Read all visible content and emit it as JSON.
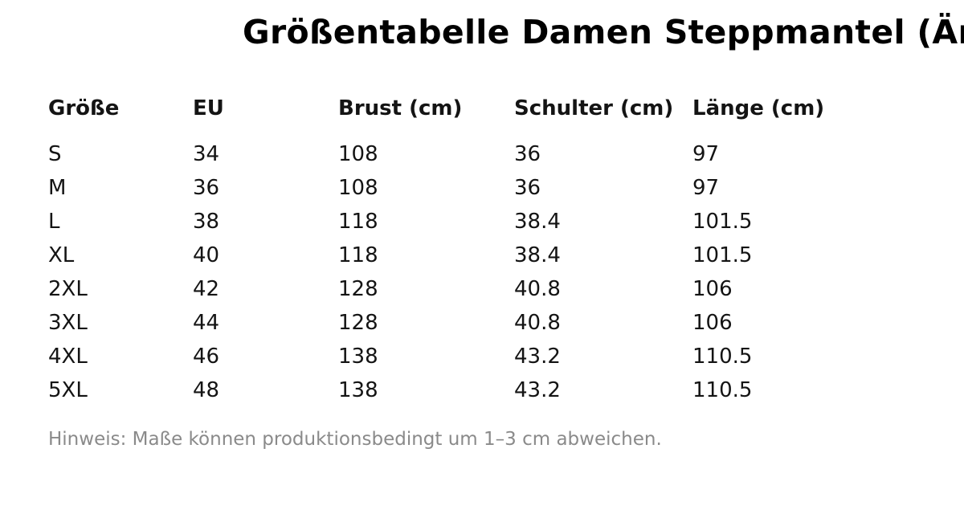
{
  "chart_data": {
    "type": "table",
    "title": "Größentabelle Damen Steppmantel (Ärm",
    "columns": [
      "Größe",
      "EU",
      "Brust (cm)",
      "Schulter (cm)",
      "Länge (cm)"
    ],
    "rows": [
      [
        "S",
        "34",
        "108",
        "36",
        "97"
      ],
      [
        "M",
        "36",
        "108",
        "36",
        "97"
      ],
      [
        "L",
        "38",
        "118",
        "38.4",
        "101.5"
      ],
      [
        "XL",
        "40",
        "118",
        "38.4",
        "101.5"
      ],
      [
        "2XL",
        "42",
        "128",
        "40.8",
        "106"
      ],
      [
        "3XL",
        "44",
        "128",
        "40.8",
        "106"
      ],
      [
        "4XL",
        "46",
        "138",
        "43.2",
        "110.5"
      ],
      [
        "5XL",
        "48",
        "138",
        "43.2",
        "110.5"
      ]
    ],
    "note": "Hinweis: Maße können produktionsbedingt um 1–3 cm abweichen.",
    "layout": {
      "grid": false,
      "header_style": "bold",
      "alignment": "left"
    }
  },
  "colors": {
    "background": "#ffffff",
    "title_text": "#000000",
    "body_text": "#141414",
    "note_text": "#8a8a8a"
  }
}
